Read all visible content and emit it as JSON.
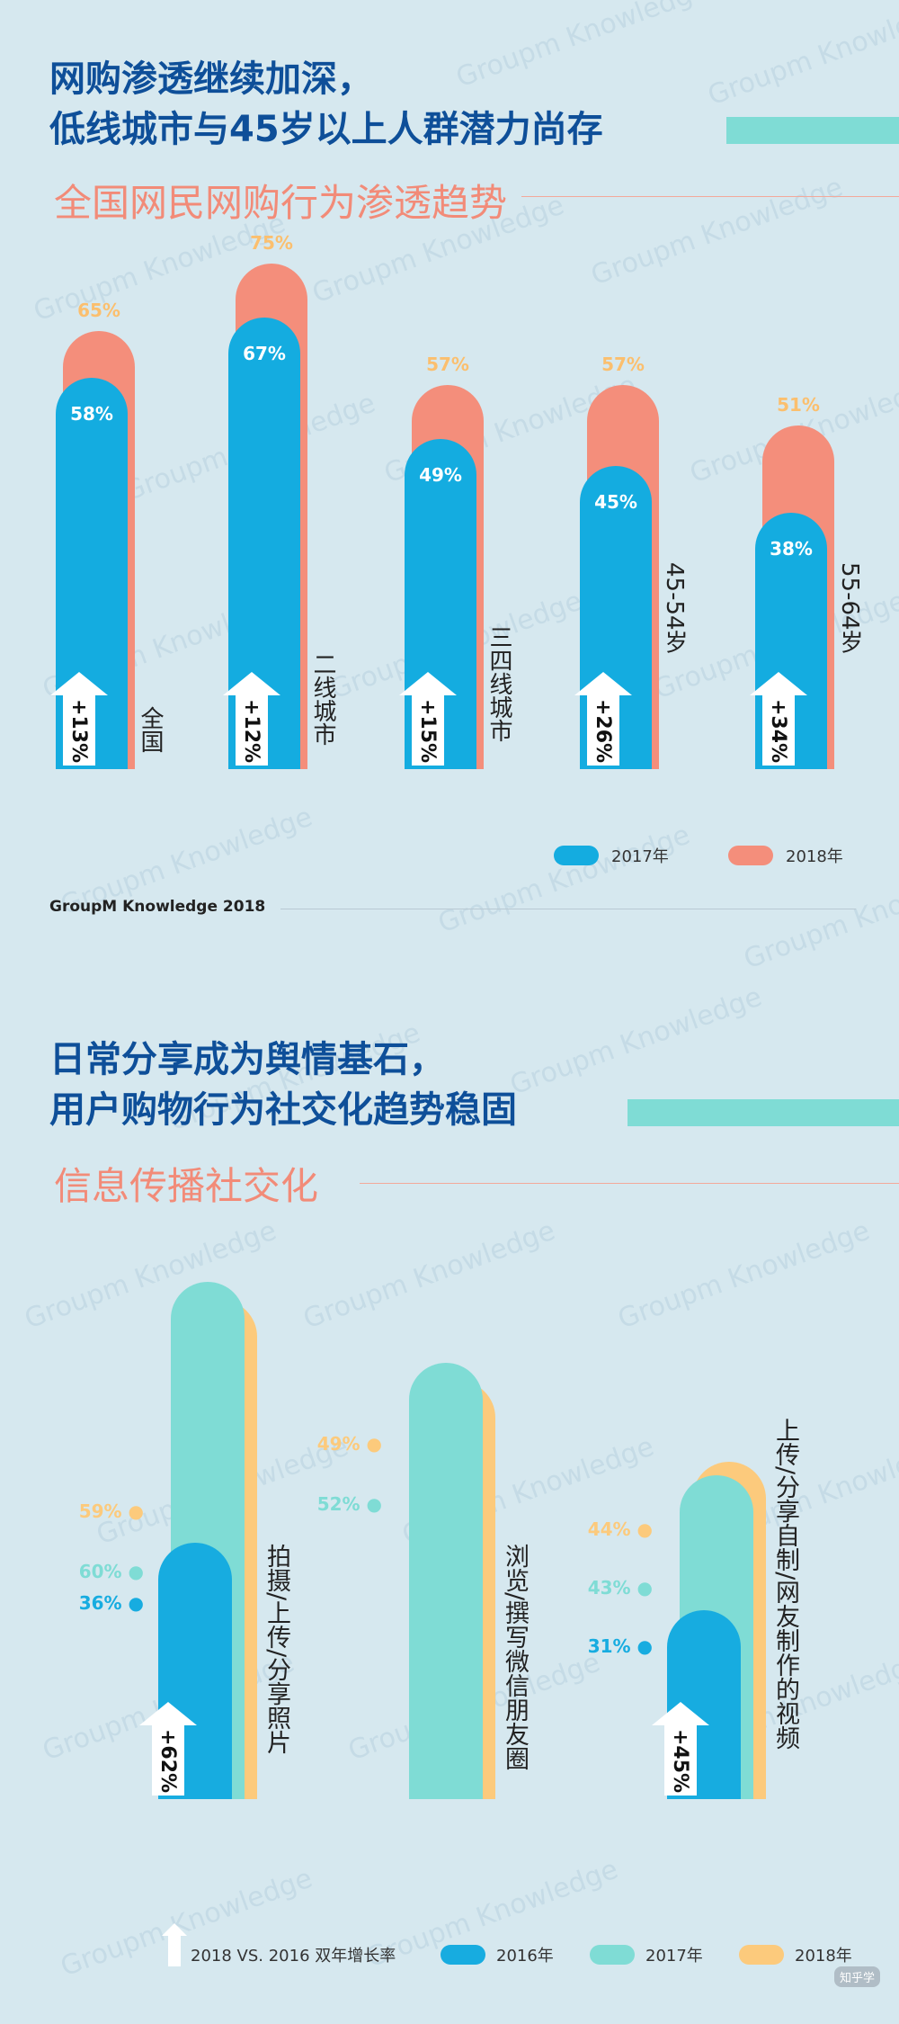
{
  "section1": {
    "title_line1": "网购渗透继续加深，",
    "title_line2": "低线城市与45岁以上人群潜力尚存",
    "subtitle": "全国网民网购行为渗透趋势",
    "source": "GroupM Knowledge 2018",
    "legend": [
      {
        "label": "2017年",
        "color": "#14ace0"
      },
      {
        "label": "2018年",
        "color": "#f48e7b"
      }
    ]
  },
  "section2": {
    "title_line1": "日常分享成为舆情基石，",
    "title_line2": "用户购物行为社交化趋势稳固",
    "subtitle": "信息传播社交化",
    "legend": [
      {
        "label": "2018 VS. 2016 双年增长率"
      },
      {
        "label": "2016年",
        "color": "#17ace0"
      },
      {
        "label": "2017年",
        "color": "#7fdcd5"
      },
      {
        "label": "2018年",
        "color": "#fcca7c"
      }
    ]
  },
  "watermark": "Groupm Knowledge",
  "corner_mark": "知乎学",
  "chart_data": [
    {
      "type": "bar",
      "categories": [
        "全国",
        "二线城市",
        "三四线城市",
        "45-54岁",
        "55-64岁"
      ],
      "series": [
        {
          "name": "2017年",
          "values": [
            58,
            67,
            49,
            45,
            38
          ],
          "labels": [
            "58%",
            "67%",
            "49%",
            "45%",
            "38%"
          ]
        },
        {
          "name": "2018年",
          "values": [
            65,
            75,
            57,
            57,
            51
          ],
          "labels": [
            "65%",
            "75%",
            "57%",
            "57%",
            "51%"
          ]
        }
      ],
      "growth": [
        "+13%",
        "+12%",
        "+15%",
        "+26%",
        "+34%"
      ],
      "ylim": [
        0,
        80
      ]
    },
    {
      "type": "bar",
      "categories": [
        "拍摄/上传/分享照片",
        "浏览/撰写微信朋友圈",
        "上传/分享自制/网友制作的视频"
      ],
      "series": [
        {
          "name": "2016年",
          "values": [
            36,
            null,
            31
          ],
          "labels": [
            "36%",
            "",
            "31%"
          ]
        },
        {
          "name": "2017年",
          "values": [
            60,
            52,
            43
          ],
          "labels": [
            "60%",
            "52%",
            "43%"
          ]
        },
        {
          "name": "2018年",
          "values": [
            59,
            49,
            44
          ],
          "labels": [
            "59%",
            "49%",
            "44%"
          ]
        }
      ],
      "growth": [
        "+62%",
        "",
        "+45%"
      ]
    }
  ]
}
